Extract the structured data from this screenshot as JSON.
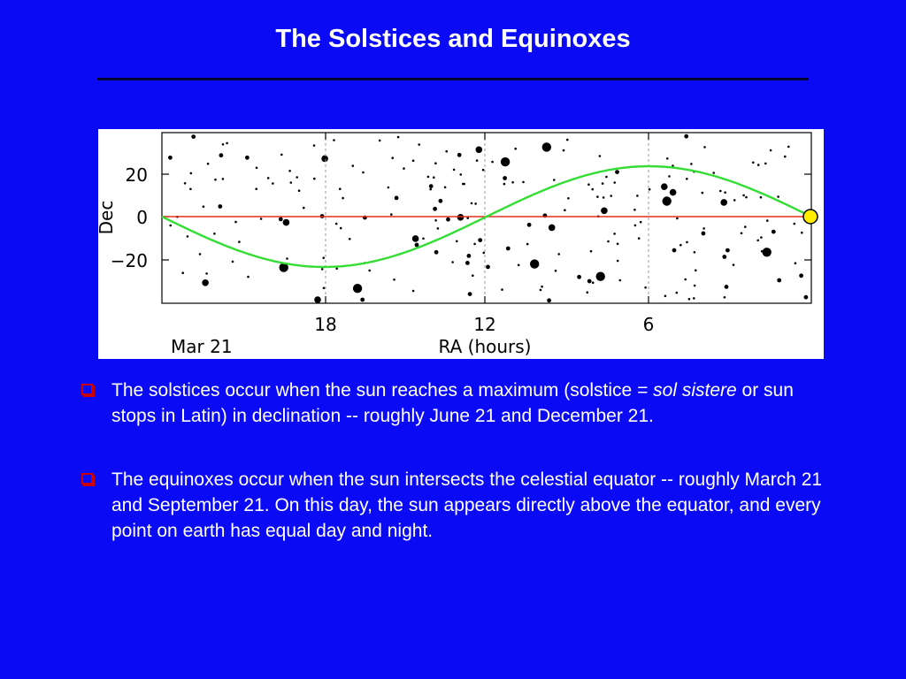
{
  "slide": {
    "title": "The Solstices and Equinoxes"
  },
  "figure": {
    "ylabel": "Dec",
    "y_ticks": [
      "20",
      "0",
      "−20"
    ],
    "x_ticks": [
      "18",
      "12",
      "6"
    ],
    "xlabel": "RA (hours)",
    "date_label": "Mar 21",
    "colors": {
      "ecliptic": "#33dd33",
      "equator": "#e03020",
      "sun_fill": "#ffee00",
      "stars": "#000000",
      "frame": "#000000"
    }
  },
  "bullets": [
    {
      "before": "The solstices occur when the sun reaches a maximum (solstice = ",
      "italic": "sol sistere",
      "after": " or sun stops in Latin) in declination -- roughly June 21 and December 21."
    },
    {
      "text": "The equinoxes occur when the sun intersects the celestial equator -- roughly March 21 and September 21. On this day, the sun appears directly above the equator, and every point on earth has equal day and night."
    }
  ]
}
